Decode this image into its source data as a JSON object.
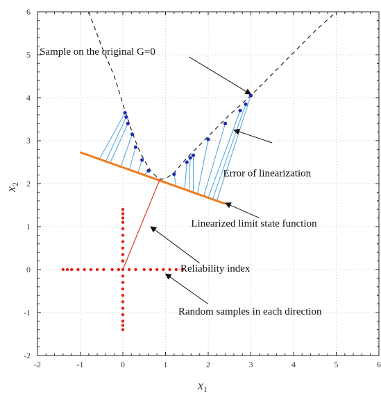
{
  "chart_data": {
    "type": "scatter",
    "title": "",
    "xlabel": "x",
    "xlabel_sub": "1",
    "ylabel": "x",
    "ylabel_sub": "2",
    "xlim": [
      -2,
      6
    ],
    "ylim": [
      -2,
      6
    ],
    "xticks": [
      -2,
      -1,
      0,
      1,
      2,
      3,
      4,
      5,
      6
    ],
    "yticks": [
      -2,
      -1,
      0,
      1,
      2,
      3,
      4,
      5,
      6
    ],
    "xtick_labels": [
      "-2",
      "-1",
      "0",
      "1",
      "2",
      "3",
      "4",
      "5",
      "6"
    ],
    "ytick_labels": [
      "-2",
      "-1",
      "0",
      "1",
      "2",
      "3",
      "4",
      "5",
      "6"
    ],
    "grid": true,
    "colors": {
      "limit_state": "#222222",
      "linearized": "#f07b1c",
      "error_lines": "#4aa3df",
      "original_samples": "#1c2fb5",
      "reliability_index": "#e2331f",
      "random_samples": "#e2231a"
    },
    "series": [
      {
        "key": "original_limit_state",
        "style": "dashed-line",
        "points": [
          [
            -0.8,
            6.0
          ],
          [
            -0.5,
            5.2
          ],
          [
            -0.2,
            4.5
          ],
          [
            0.05,
            3.7
          ],
          [
            0.2,
            3.25
          ],
          [
            0.35,
            2.85
          ],
          [
            0.5,
            2.55
          ],
          [
            0.65,
            2.3
          ],
          [
            0.8,
            2.15
          ],
          [
            0.9,
            2.1
          ],
          [
            1.05,
            2.15
          ],
          [
            1.2,
            2.25
          ],
          [
            1.5,
            2.6
          ],
          [
            2.0,
            3.1
          ],
          [
            2.5,
            3.6
          ],
          [
            3.0,
            4.05
          ],
          [
            3.5,
            4.55
          ],
          [
            4.0,
            5.05
          ],
          [
            4.5,
            5.55
          ],
          [
            5.0,
            6.0
          ]
        ]
      },
      {
        "key": "linearized_limit_state",
        "style": "line",
        "points": [
          [
            -1.0,
            2.73
          ],
          [
            2.4,
            1.53
          ]
        ]
      },
      {
        "key": "samples_on_original",
        "style": "markers",
        "points": [
          [
            0.05,
            3.65
          ],
          [
            0.08,
            3.55
          ],
          [
            0.12,
            3.4
          ],
          [
            0.22,
            3.15
          ],
          [
            0.3,
            2.85
          ],
          [
            0.45,
            2.55
          ],
          [
            0.6,
            2.3
          ],
          [
            1.2,
            2.22
          ],
          [
            1.5,
            2.5
          ],
          [
            1.58,
            2.6
          ],
          [
            1.65,
            2.66
          ],
          [
            2.0,
            3.03
          ],
          [
            2.4,
            3.4
          ],
          [
            2.75,
            3.7
          ],
          [
            2.88,
            3.85
          ],
          [
            3.0,
            4.05
          ]
        ]
      },
      {
        "key": "linearized_samples",
        "style": "markers",
        "points": [
          [
            -0.55,
            2.57
          ],
          [
            -0.4,
            2.52
          ],
          [
            -0.3,
            2.48
          ],
          [
            -0.05,
            2.39
          ],
          [
            0.15,
            2.32
          ],
          [
            0.35,
            2.25
          ],
          [
            0.5,
            2.2
          ],
          [
            1.25,
            1.94
          ],
          [
            1.45,
            1.87
          ],
          [
            1.55,
            1.84
          ],
          [
            1.65,
            1.8
          ],
          [
            1.75,
            1.77
          ],
          [
            1.9,
            1.72
          ],
          [
            2.0,
            1.67
          ],
          [
            2.1,
            1.63
          ],
          [
            2.2,
            1.6
          ]
        ]
      },
      {
        "key": "reliability_index",
        "style": "line",
        "points": [
          [
            0,
            0
          ],
          [
            0.88,
            2.13
          ]
        ]
      },
      {
        "key": "random_samples_horizontal",
        "style": "markers",
        "points": [
          [
            -1.4,
            0
          ],
          [
            -1.3,
            0
          ],
          [
            -1.2,
            0
          ],
          [
            -1.05,
            0
          ],
          [
            -0.9,
            0
          ],
          [
            -0.75,
            0
          ],
          [
            -0.6,
            0
          ],
          [
            -0.45,
            0
          ],
          [
            -0.25,
            0
          ],
          [
            -0.1,
            0
          ],
          [
            0,
            0
          ],
          [
            0.15,
            0
          ],
          [
            0.3,
            0
          ],
          [
            0.5,
            0
          ],
          [
            0.65,
            0
          ],
          [
            0.8,
            0
          ],
          [
            0.95,
            0
          ],
          [
            1.1,
            0
          ],
          [
            1.25,
            0
          ],
          [
            1.4,
            0
          ]
        ]
      },
      {
        "key": "random_samples_vertical",
        "style": "markers",
        "points": [
          [
            0,
            1.4
          ],
          [
            0,
            1.3
          ],
          [
            0,
            1.2
          ],
          [
            0,
            1.1
          ],
          [
            0,
            0.95
          ],
          [
            0,
            0.8
          ],
          [
            0,
            0.65
          ],
          [
            0,
            0.5
          ],
          [
            0,
            0.35
          ],
          [
            0,
            0.2
          ],
          [
            0,
            -0.15
          ],
          [
            0,
            -0.3
          ],
          [
            0,
            -0.45
          ],
          [
            0,
            -0.6
          ],
          [
            0,
            -0.75
          ],
          [
            0,
            -0.9
          ],
          [
            0,
            -1.05
          ],
          [
            0,
            -1.2
          ],
          [
            0,
            -1.3
          ],
          [
            0,
            -1.4
          ]
        ]
      }
    ],
    "annotations": [
      {
        "text": "Sample on the original G=0",
        "anchor": "start",
        "text_at": [
          -1.95,
          5.0
        ],
        "arrow_from": [
          1.55,
          4.95
        ],
        "arrow_to": [
          3.0,
          4.08
        ]
      },
      {
        "text": "Error of linearization",
        "anchor": "start",
        "text_at": [
          2.35,
          2.17
        ],
        "arrow_from": [
          3.5,
          2.95
        ],
        "arrow_to": [
          2.6,
          3.25
        ]
      },
      {
        "text": "Linearized limit state function",
        "anchor": "start",
        "text_at": [
          1.6,
          1.0
        ],
        "arrow_from": [
          3.2,
          1.2
        ],
        "arrow_to": [
          2.4,
          1.55
        ]
      },
      {
        "text": "Reliability index",
        "anchor": "start",
        "text_at": [
          1.35,
          -0.05
        ],
        "arrow_from": [
          1.8,
          0.15
        ],
        "arrow_to": [
          0.65,
          1.0
        ]
      },
      {
        "text": "Random samples in each direction",
        "anchor": "start",
        "text_at": [
          1.3,
          -1.05
        ],
        "arrow_from": [
          2.0,
          -0.8
        ],
        "arrow_to": [
          1.0,
          -0.1
        ]
      }
    ]
  }
}
